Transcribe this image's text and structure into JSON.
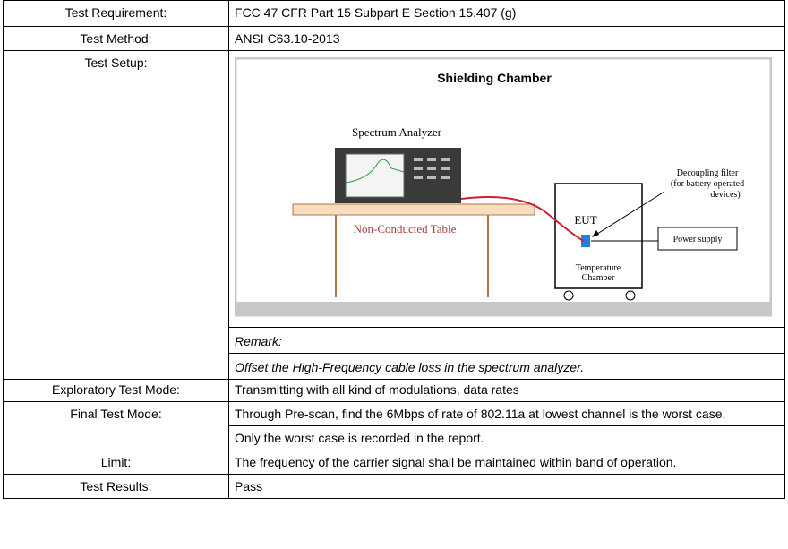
{
  "rows": [
    {
      "label": "Test Requirement:",
      "value": "FCC 47 CFR Part 15 Subpart E Section 15.407 (g)"
    },
    {
      "label": "Test Method:",
      "value": "ANSI C63.10-2013"
    },
    {
      "label": "Test Setup:",
      "diagram": {
        "title": "Shielding Chamber",
        "analyzer": "Spectrum Analyzer",
        "table": "Non-Conducted Table",
        "filter": [
          "Decoupling filter",
          "(for battery operated",
          "devices)"
        ],
        "eut": "EUT",
        "power": "Power supply",
        "chamber": [
          "Temperature",
          "Chamber"
        ]
      },
      "remark": "Remark:",
      "remark_text": "Offset the High-Frequency cable loss  in the spectrum analyzer."
    },
    {
      "label": "Exploratory Test Mode:",
      "value": "Transmitting with all kind of modulations, data rates"
    },
    {
      "label": "Final Test Mode:",
      "value": "Through Pre-scan, find the 6Mbps of rate of 802.11a at lowest channel is the worst case.",
      "value2": "Only the worst case is recorded in the report."
    },
    {
      "label": "Limit:",
      "value": "The frequency of the carrier signal shall be maintained within band of operation."
    },
    {
      "label": "Test Results:",
      "value": "Pass"
    }
  ]
}
